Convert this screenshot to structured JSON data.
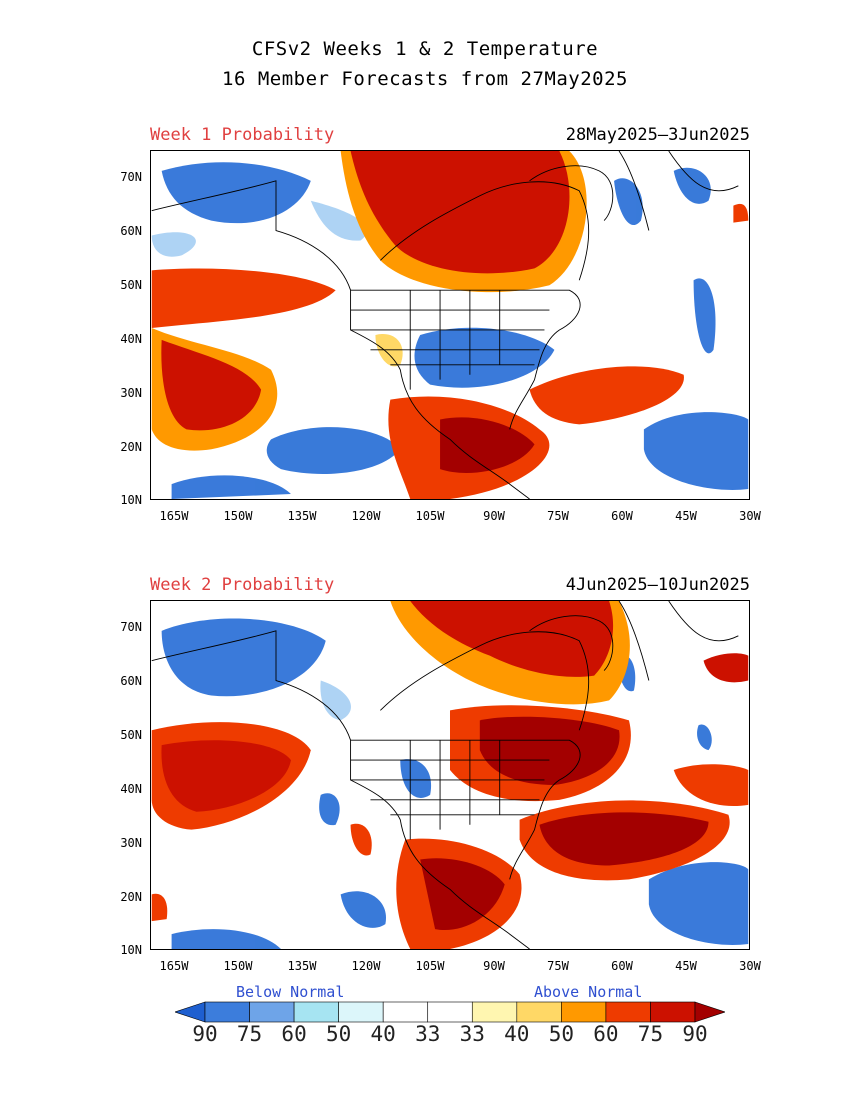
{
  "title_line1": "CFSv2 Weeks 1 & 2 Temperature",
  "title_line2": "16 Member Forecasts from 27May2025",
  "panels": [
    {
      "label": "Week 1 Probability",
      "dates": "28May2025—3Jun2025"
    },
    {
      "label": "Week 2 Probability",
      "dates": "4Jun2025—10Jun2025"
    }
  ],
  "lat_ticks": [
    "70N",
    "60N",
    "50N",
    "40N",
    "30N",
    "20N",
    "10N"
  ],
  "lon_ticks": [
    "165W",
    "150W",
    "135W",
    "120W",
    "105W",
    "90W",
    "75W",
    "60W",
    "45W",
    "30W"
  ],
  "legend": {
    "below_label": "Below Normal",
    "above_label": "Above Normal",
    "values": [
      "90",
      "75",
      "60",
      "50",
      "40",
      "33",
      "33",
      "40",
      "50",
      "60",
      "75",
      "90"
    ],
    "colors": [
      "#1e5fd0",
      "#3c7ddc",
      "#6ea4e8",
      "#a6e4f2",
      "#dcf6fa",
      "#ffffff",
      "#ffffff",
      "#fff6b0",
      "#ffd866",
      "#ff9900",
      "#ee3b00",
      "#cc1100",
      "#a30000"
    ]
  }
}
